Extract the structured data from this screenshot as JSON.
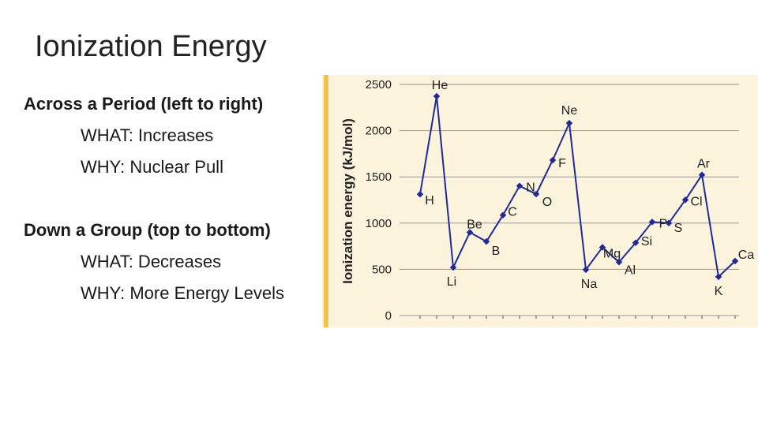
{
  "slide": {
    "title": "Ionization Energy"
  },
  "bullets": {
    "period_heading": "Across a Period (left to right)",
    "period_what_key": "WHAT",
    "period_what_value": ": Increases",
    "period_why_key": "WHY",
    "period_why_value": ": Nuclear Pull",
    "group_heading": "Down a Group (top to bottom)",
    "group_what_key": "WHAT",
    "group_what_value": ": Decreases",
    "group_why_key": "WHY",
    "group_why_value": ": More Energy Levels"
  },
  "colors": {
    "background": "#fbf3dc",
    "left_bar": "#f0c24b",
    "line": "#1e2a99",
    "grid": "#9a9a9a",
    "text": "#222222"
  },
  "chart_data": {
    "type": "line",
    "title": "",
    "xlabel": "",
    "ylabel": "Ionization energy (kJ/mol)",
    "ylim": [
      0,
      2500
    ],
    "yticks": [
      0,
      500,
      1000,
      1500,
      2000,
      2500
    ],
    "grid": true,
    "series": [
      {
        "points": [
          {
            "label": "H",
            "value": 1312
          },
          {
            "label": "He",
            "value": 2372
          },
          {
            "label": "Li",
            "value": 520
          },
          {
            "label": "Be",
            "value": 900
          },
          {
            "label": "B",
            "value": 801
          },
          {
            "label": "C",
            "value": 1086
          },
          {
            "label": "N",
            "value": 1402
          },
          {
            "label": "O",
            "value": 1314
          },
          {
            "label": "F",
            "value": 1681
          },
          {
            "label": "Ne",
            "value": 2081
          },
          {
            "label": "Na",
            "value": 496
          },
          {
            "label": "Mg",
            "value": 738
          },
          {
            "label": "Al",
            "value": 578
          },
          {
            "label": "Si",
            "value": 787
          },
          {
            "label": "P",
            "value": 1012
          },
          {
            "label": "S",
            "value": 1000
          },
          {
            "label": "Cl",
            "value": 1251
          },
          {
            "label": "Ar",
            "value": 1521
          },
          {
            "label": "K",
            "value": 419
          },
          {
            "label": "Ca",
            "value": 590
          }
        ]
      }
    ]
  }
}
